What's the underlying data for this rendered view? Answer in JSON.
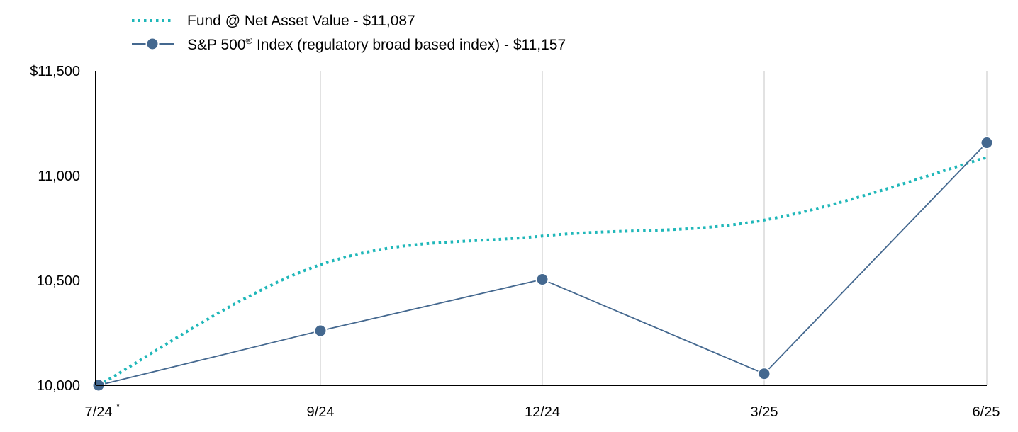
{
  "chart_data": {
    "type": "line",
    "categories": [
      "7/24",
      "9/24",
      "12/24",
      "3/25",
      "6/25"
    ],
    "category_footnote_mark": "*",
    "series": [
      {
        "name": "Fund @ Net Asset Value - $11,087",
        "values": [
          10000,
          10575,
          10712,
          10788,
          11087
        ],
        "color": "#1fb7b9",
        "style": "dotted",
        "markers": false
      },
      {
        "name_main": "S&P 500",
        "name_mark": "®",
        "name_rest": " Index (regulatory broad based index) - $11,157",
        "values": [
          10000,
          10260,
          10505,
          10055,
          11157
        ],
        "color": "#44688f",
        "style": "solid",
        "markers": true
      }
    ],
    "ylim": [
      10000,
      11500
    ],
    "yticks": [
      10000,
      10500,
      11000,
      11500
    ],
    "ytick_labels": [
      "10,000",
      "10,500",
      "11,000",
      "$11,500"
    ],
    "grid": "vertical",
    "legend_position": "top-left"
  }
}
